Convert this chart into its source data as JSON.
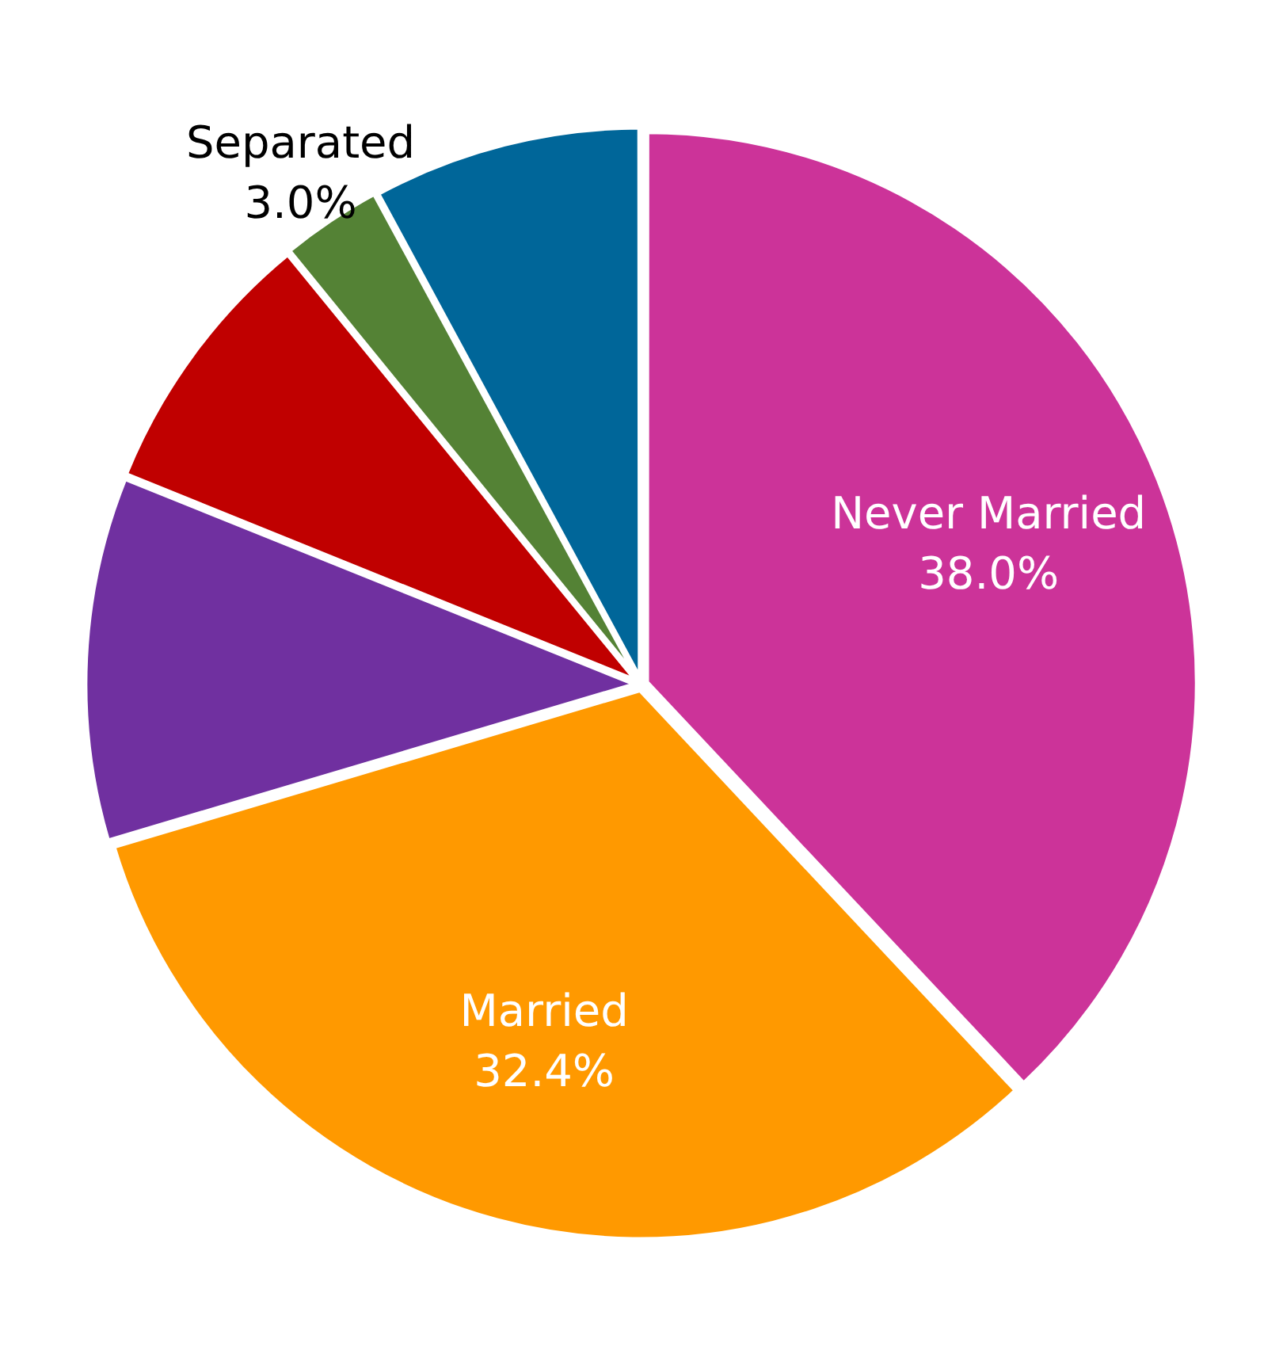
{
  "chart_data": {
    "type": "pie",
    "categories": [
      "Never Married",
      "Married",
      null,
      null,
      "Separated",
      null
    ],
    "values": [
      38.0,
      32.4,
      10.7,
      8.0,
      3.0,
      7.9
    ],
    "value_labels": [
      "38.0%",
      "32.4%",
      null,
      null,
      "3.0%",
      null
    ],
    "colors": [
      "#cc3399",
      "#ff9900",
      "#7030a0",
      "#c00000",
      "#548235",
      "#006699"
    ],
    "legend": false
  }
}
